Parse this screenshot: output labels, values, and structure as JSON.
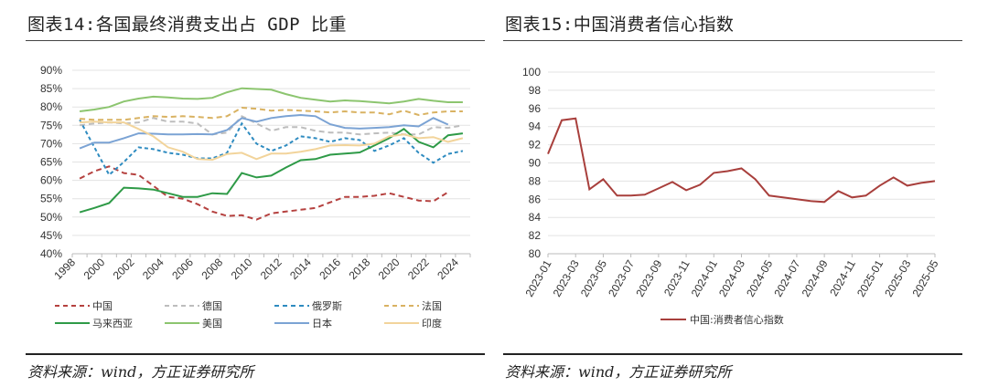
{
  "left": {
    "title": "图表14:各国最终消费支出占 GDP 比重",
    "source": "资料来源：wind，方正证券研究所"
  },
  "right": {
    "title": "图表15:中国消费者信心指数",
    "source": "资料来源：wind，方正证券研究所"
  },
  "chart_data": [
    {
      "type": "line",
      "title": "各国最终消费支出占 GDP 比重",
      "ylim": [
        40,
        90
      ],
      "yticks": [
        "40%",
        "45%",
        "50%",
        "55%",
        "60%",
        "65%",
        "70%",
        "75%",
        "80%",
        "85%",
        "90%"
      ],
      "x": [
        1998,
        1999,
        2000,
        2001,
        2002,
        2003,
        2004,
        2005,
        2006,
        2007,
        2008,
        2009,
        2010,
        2011,
        2012,
        2013,
        2014,
        2015,
        2016,
        2017,
        2018,
        2019,
        2020,
        2021,
        2022,
        2023,
        2024
      ],
      "xticks": [
        "1998",
        "2000",
        "2002",
        "2004",
        "2006",
        "2008",
        "2010",
        "2012",
        "2014",
        "2016",
        "2018",
        "2020",
        "2022",
        "2024"
      ],
      "legend": "bottom",
      "series": [
        {
          "name": "中国",
          "color": "#b5413f",
          "dash": true,
          "values": [
            60.5,
            62.5,
            63.8,
            62,
            61.5,
            58.5,
            55.5,
            55,
            53.5,
            51.5,
            50.3,
            50.5,
            49.3,
            51,
            51.5,
            52,
            52.5,
            54,
            55.5,
            55.5,
            55.8,
            56.5,
            55.5,
            54.5,
            54.3,
            56.8,
            null
          ]
        },
        {
          "name": "德国",
          "color": "#bdbdbd",
          "dash": true,
          "values": [
            75,
            75.5,
            75.8,
            75.5,
            75.8,
            77,
            76,
            76,
            75.5,
            72.5,
            73,
            77.5,
            75.5,
            73.5,
            74.5,
            74.5,
            73.5,
            73,
            73,
            72.5,
            72.8,
            73,
            72.5,
            72.5,
            74.5,
            74.3,
            75
          ]
        },
        {
          "name": "俄罗斯",
          "color": "#2e8bc0",
          "dash": true,
          "values": [
            76.5,
            69,
            61.5,
            65,
            69,
            68.5,
            67.5,
            67,
            66,
            66,
            67.5,
            75.5,
            70,
            68,
            69.5,
            72,
            71.5,
            70.5,
            71.5,
            71,
            68,
            69.5,
            71.5,
            67.5,
            64.8,
            67.2,
            68
          ]
        },
        {
          "name": "法国",
          "color": "#d9b262",
          "dash": true,
          "values": [
            76.8,
            76.5,
            76.5,
            76.5,
            77,
            77.5,
            77.3,
            77.5,
            77.3,
            77,
            77.5,
            79.8,
            79.5,
            79,
            79.2,
            79,
            78.8,
            78.5,
            78.8,
            78.5,
            78.5,
            78,
            79,
            77.8,
            78.5,
            78.8,
            78.8
          ]
        },
        {
          "name": "马来西亚",
          "color": "#2e9a47",
          "dash": false,
          "values": [
            51.3,
            52.5,
            53.8,
            58,
            57.8,
            57.5,
            56.5,
            55.5,
            55.5,
            56.5,
            56.3,
            62,
            60.8,
            61.3,
            63.5,
            65.5,
            65.8,
            67,
            67.3,
            67.6,
            69.5,
            71.5,
            74,
            70.5,
            69,
            72.3,
            72.8
          ]
        },
        {
          "name": "美国",
          "color": "#8cc56f",
          "dash": false,
          "values": [
            78.8,
            79.3,
            80,
            81.5,
            82.3,
            82.8,
            82.6,
            82.3,
            82.2,
            82.5,
            84,
            85.1,
            84.9,
            84.7,
            83.5,
            82.5,
            82,
            81.5,
            81.8,
            81.6,
            81.3,
            81,
            81.5,
            82.2,
            81.7,
            81.3,
            81.3
          ]
        },
        {
          "name": "日本",
          "color": "#7ba3d4",
          "dash": false,
          "values": [
            68.7,
            70.3,
            70.3,
            71.5,
            72.8,
            72.7,
            72.5,
            72.5,
            72.6,
            72.5,
            73.7,
            77,
            76,
            77,
            77.5,
            77.8,
            77.5,
            75.3,
            74.3,
            74.1,
            74.3,
            74.5,
            75,
            74.7,
            77,
            75.2,
            null
          ]
        },
        {
          "name": "印度",
          "color": "#f2d49b",
          "dash": false,
          "values": [
            75.8,
            76,
            75.8,
            75.8,
            74,
            72,
            69,
            67.8,
            65.8,
            65.6,
            67.2,
            67.5,
            65.8,
            67.3,
            67.3,
            67.8,
            68.5,
            69.5,
            69.6,
            69.5,
            70,
            72,
            72.5,
            71.5,
            71.8,
            70.5,
            71.5
          ]
        }
      ]
    },
    {
      "type": "line",
      "title": "中国消费者信心指数",
      "ylim": [
        80,
        100
      ],
      "yticks": [
        "80",
        "82",
        "84",
        "86",
        "88",
        "90",
        "92",
        "94",
        "96",
        "98",
        "100"
      ],
      "x": [
        "2023-01",
        "2023-02",
        "2023-03",
        "2023-04",
        "2023-05",
        "2023-06",
        "2023-07",
        "2023-08",
        "2023-09",
        "2023-10",
        "2023-11",
        "2023-12",
        "2024-01",
        "2024-02",
        "2024-03",
        "2024-04",
        "2024-05",
        "2024-06",
        "2024-07",
        "2024-08",
        "2024-09",
        "2024-10",
        "2024-11",
        "2024-12",
        "2025-01",
        "2025-02",
        "2025-03",
        "2025-04",
        "2025-05"
      ],
      "xticks": [
        "2023-01",
        "2023-03",
        "2023-05",
        "2023-07",
        "2023-09",
        "2023-11",
        "2024-01",
        "2024-03",
        "2024-05",
        "2024-07",
        "2024-09",
        "2024-11",
        "2025-01",
        "2025-03",
        "2025-05"
      ],
      "legend": "bottom",
      "series": [
        {
          "name": "中国:消费者信心指数",
          "color": "#a83f3c",
          "dash": false,
          "values": [
            91.0,
            94.7,
            94.9,
            87.1,
            88.2,
            86.4,
            86.4,
            86.5,
            87.2,
            87.9,
            87.0,
            87.6,
            88.9,
            89.1,
            89.4,
            88.2,
            86.4,
            86.2,
            86.0,
            85.8,
            85.7,
            86.9,
            86.2,
            86.4,
            87.5,
            88.4,
            87.5,
            87.8,
            88.0
          ]
        }
      ]
    }
  ]
}
